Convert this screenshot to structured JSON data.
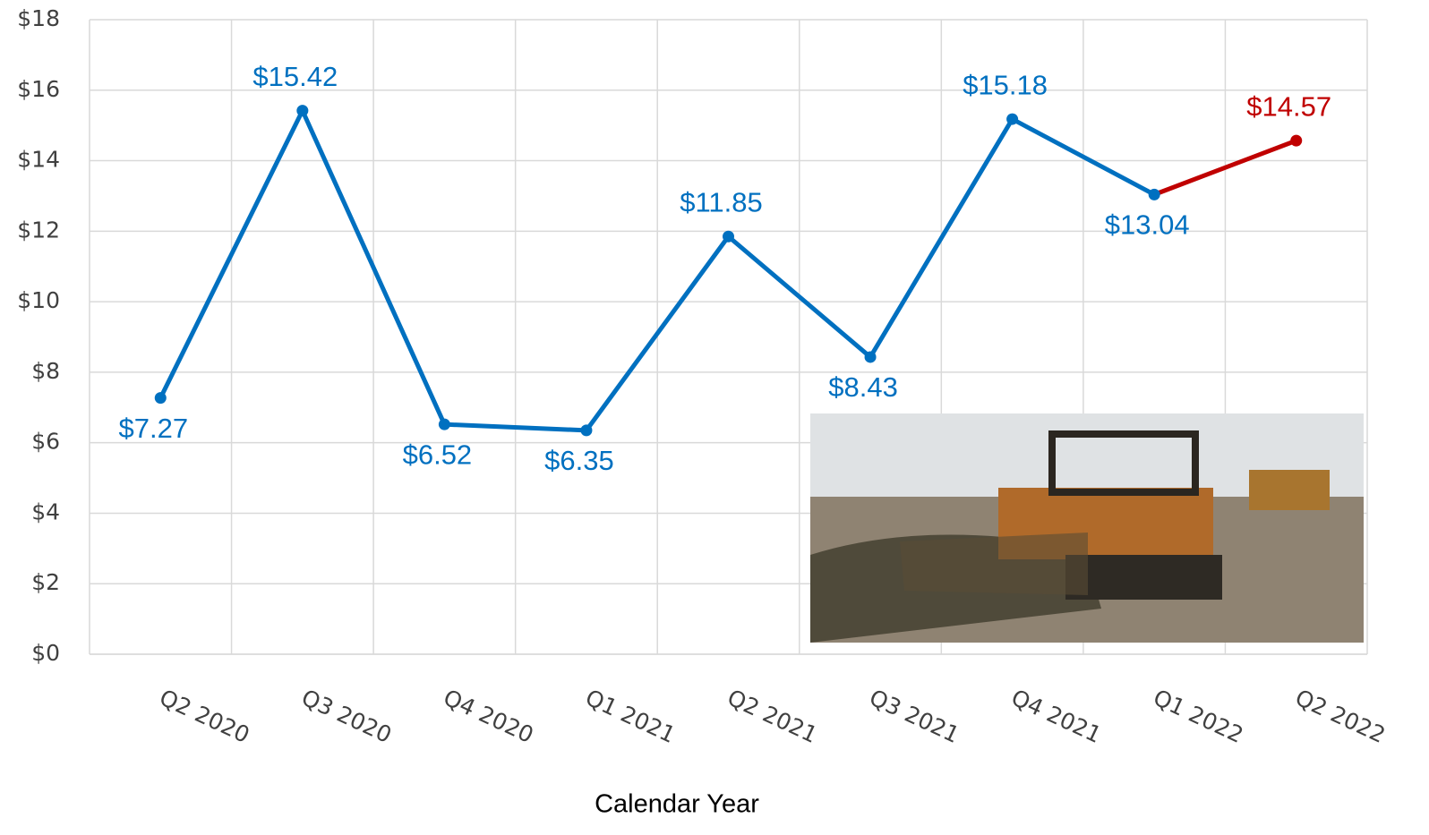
{
  "chart_data": {
    "type": "line",
    "x_label": "Calendar Year",
    "categories": [
      "Q2 2020",
      "Q3 2020",
      "Q4 2020",
      "Q1 2021",
      "Q2 2021",
      "Q3 2021",
      "Q4 2021",
      "Q1 2022",
      "Q2 2022"
    ],
    "series": [
      {
        "color": "#0070c0",
        "last_segment_color": "#c00000",
        "values": [
          7.27,
          15.42,
          6.52,
          6.35,
          11.85,
          8.43,
          15.18,
          13.04,
          14.57
        ],
        "value_labels": [
          "$7.27",
          "$15.42",
          "$6.52",
          "$6.35",
          "$11.85",
          "$8.43",
          "$15.18",
          "$13.04",
          "$14.57"
        ]
      }
    ],
    "ylim": [
      0,
      18
    ],
    "yticks": [
      {
        "value": 0,
        "label": "$0"
      },
      {
        "value": 2,
        "label": "$2"
      },
      {
        "value": 4,
        "label": "$4"
      },
      {
        "value": 6,
        "label": "$6"
      },
      {
        "value": 8,
        "label": "$8"
      },
      {
        "value": 10,
        "label": "$10"
      },
      {
        "value": 12,
        "label": "$12"
      },
      {
        "value": 14,
        "label": "$14"
      },
      {
        "value": 16,
        "label": "$16"
      },
      {
        "value": 18,
        "label": "$18"
      }
    ],
    "grid": true
  }
}
